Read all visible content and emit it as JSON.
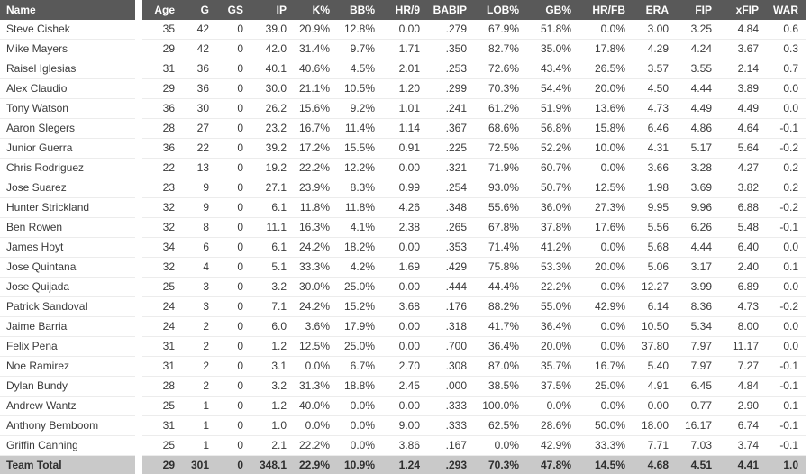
{
  "table": {
    "name_header": "Name",
    "columns": [
      "Age",
      "G",
      "GS",
      "IP",
      "K%",
      "BB%",
      "HR/9",
      "BABIP",
      "LOB%",
      "GB%",
      "HR/FB",
      "ERA",
      "FIP",
      "xFIP",
      "WAR"
    ],
    "rows": [
      {
        "name": "Steve Cishek",
        "values": [
          "35",
          "42",
          "0",
          "39.0",
          "20.9%",
          "12.8%",
          "0.00",
          ".279",
          "67.9%",
          "51.8%",
          "0.0%",
          "3.00",
          "3.25",
          "4.84",
          "0.6"
        ]
      },
      {
        "name": "Mike Mayers",
        "values": [
          "29",
          "42",
          "0",
          "42.0",
          "31.4%",
          "9.7%",
          "1.71",
          ".350",
          "82.7%",
          "35.0%",
          "17.8%",
          "4.29",
          "4.24",
          "3.67",
          "0.3"
        ]
      },
      {
        "name": "Raisel Iglesias",
        "values": [
          "31",
          "36",
          "0",
          "40.1",
          "40.6%",
          "4.5%",
          "2.01",
          ".253",
          "72.6%",
          "43.4%",
          "26.5%",
          "3.57",
          "3.55",
          "2.14",
          "0.7"
        ]
      },
      {
        "name": "Alex Claudio",
        "values": [
          "29",
          "36",
          "0",
          "30.0",
          "21.1%",
          "10.5%",
          "1.20",
          ".299",
          "70.3%",
          "54.4%",
          "20.0%",
          "4.50",
          "4.44",
          "3.89",
          "0.0"
        ]
      },
      {
        "name": "Tony Watson",
        "values": [
          "36",
          "30",
          "0",
          "26.2",
          "15.6%",
          "9.2%",
          "1.01",
          ".241",
          "61.2%",
          "51.9%",
          "13.6%",
          "4.73",
          "4.49",
          "4.49",
          "0.0"
        ]
      },
      {
        "name": "Aaron Slegers",
        "values": [
          "28",
          "27",
          "0",
          "23.2",
          "16.7%",
          "11.4%",
          "1.14",
          ".367",
          "68.6%",
          "56.8%",
          "15.8%",
          "6.46",
          "4.86",
          "4.64",
          "-0.1"
        ]
      },
      {
        "name": "Junior Guerra",
        "values": [
          "36",
          "22",
          "0",
          "39.2",
          "17.2%",
          "15.5%",
          "0.91",
          ".225",
          "72.5%",
          "52.2%",
          "10.0%",
          "4.31",
          "5.17",
          "5.64",
          "-0.2"
        ]
      },
      {
        "name": "Chris Rodriguez",
        "values": [
          "22",
          "13",
          "0",
          "19.2",
          "22.2%",
          "12.2%",
          "0.00",
          ".321",
          "71.9%",
          "60.7%",
          "0.0%",
          "3.66",
          "3.28",
          "4.27",
          "0.2"
        ]
      },
      {
        "name": "Jose Suarez",
        "values": [
          "23",
          "9",
          "0",
          "27.1",
          "23.9%",
          "8.3%",
          "0.99",
          ".254",
          "93.0%",
          "50.7%",
          "12.5%",
          "1.98",
          "3.69",
          "3.82",
          "0.2"
        ]
      },
      {
        "name": "Hunter Strickland",
        "values": [
          "32",
          "9",
          "0",
          "6.1",
          "11.8%",
          "11.8%",
          "4.26",
          ".348",
          "55.6%",
          "36.0%",
          "27.3%",
          "9.95",
          "9.96",
          "6.88",
          "-0.2"
        ]
      },
      {
        "name": "Ben Rowen",
        "values": [
          "32",
          "8",
          "0",
          "11.1",
          "16.3%",
          "4.1%",
          "2.38",
          ".265",
          "67.8%",
          "37.8%",
          "17.6%",
          "5.56",
          "6.26",
          "5.48",
          "-0.1"
        ]
      },
      {
        "name": "James Hoyt",
        "values": [
          "34",
          "6",
          "0",
          "6.1",
          "24.2%",
          "18.2%",
          "0.00",
          ".353",
          "71.4%",
          "41.2%",
          "0.0%",
          "5.68",
          "4.44",
          "6.40",
          "0.0"
        ]
      },
      {
        "name": "Jose Quintana",
        "values": [
          "32",
          "4",
          "0",
          "5.1",
          "33.3%",
          "4.2%",
          "1.69",
          ".429",
          "75.8%",
          "53.3%",
          "20.0%",
          "5.06",
          "3.17",
          "2.40",
          "0.1"
        ]
      },
      {
        "name": "Jose Quijada",
        "values": [
          "25",
          "3",
          "0",
          "3.2",
          "30.0%",
          "25.0%",
          "0.00",
          ".444",
          "44.4%",
          "22.2%",
          "0.0%",
          "12.27",
          "3.99",
          "6.89",
          "0.0"
        ]
      },
      {
        "name": "Patrick Sandoval",
        "values": [
          "24",
          "3",
          "0",
          "7.1",
          "24.2%",
          "15.2%",
          "3.68",
          ".176",
          "88.2%",
          "55.0%",
          "42.9%",
          "6.14",
          "8.36",
          "4.73",
          "-0.2"
        ]
      },
      {
        "name": "Jaime Barria",
        "values": [
          "24",
          "2",
          "0",
          "6.0",
          "3.6%",
          "17.9%",
          "0.00",
          ".318",
          "41.7%",
          "36.4%",
          "0.0%",
          "10.50",
          "5.34",
          "8.00",
          "0.0"
        ]
      },
      {
        "name": "Felix Pena",
        "values": [
          "31",
          "2",
          "0",
          "1.2",
          "12.5%",
          "25.0%",
          "0.00",
          ".700",
          "36.4%",
          "20.0%",
          "0.0%",
          "37.80",
          "7.97",
          "11.17",
          "0.0"
        ]
      },
      {
        "name": "Noe Ramirez",
        "values": [
          "31",
          "2",
          "0",
          "3.1",
          "0.0%",
          "6.7%",
          "2.70",
          ".308",
          "87.0%",
          "35.7%",
          "16.7%",
          "5.40",
          "7.97",
          "7.27",
          "-0.1"
        ]
      },
      {
        "name": "Dylan Bundy",
        "values": [
          "28",
          "2",
          "0",
          "3.2",
          "31.3%",
          "18.8%",
          "2.45",
          ".000",
          "38.5%",
          "37.5%",
          "25.0%",
          "4.91",
          "6.45",
          "4.84",
          "-0.1"
        ]
      },
      {
        "name": "Andrew Wantz",
        "values": [
          "25",
          "1",
          "0",
          "1.2",
          "40.0%",
          "0.0%",
          "0.00",
          ".333",
          "100.0%",
          "0.0%",
          "0.0%",
          "0.00",
          "0.77",
          "2.90",
          "0.1"
        ]
      },
      {
        "name": "Anthony Bemboom",
        "values": [
          "31",
          "1",
          "0",
          "1.0",
          "0.0%",
          "0.0%",
          "9.00",
          ".333",
          "62.5%",
          "28.6%",
          "50.0%",
          "18.00",
          "16.17",
          "6.74",
          "-0.1"
        ]
      },
      {
        "name": "Griffin Canning",
        "values": [
          "25",
          "1",
          "0",
          "2.1",
          "22.2%",
          "0.0%",
          "3.86",
          ".167",
          "0.0%",
          "42.9%",
          "33.3%",
          "7.71",
          "7.03",
          "3.74",
          "-0.1"
        ]
      }
    ],
    "total_row": {
      "name": "Team Total",
      "values": [
        "29",
        "301",
        "0",
        "348.1",
        "22.9%",
        "10.9%",
        "1.24",
        ".293",
        "70.3%",
        "47.8%",
        "14.5%",
        "4.68",
        "4.51",
        "4.41",
        "1.0"
      ]
    }
  },
  "colors": {
    "header_bg": "#595959",
    "header_text": "#ffffff",
    "row_text": "#3a3a3a",
    "row_border": "#ececec",
    "total_bg": "#c9c9c9"
  }
}
